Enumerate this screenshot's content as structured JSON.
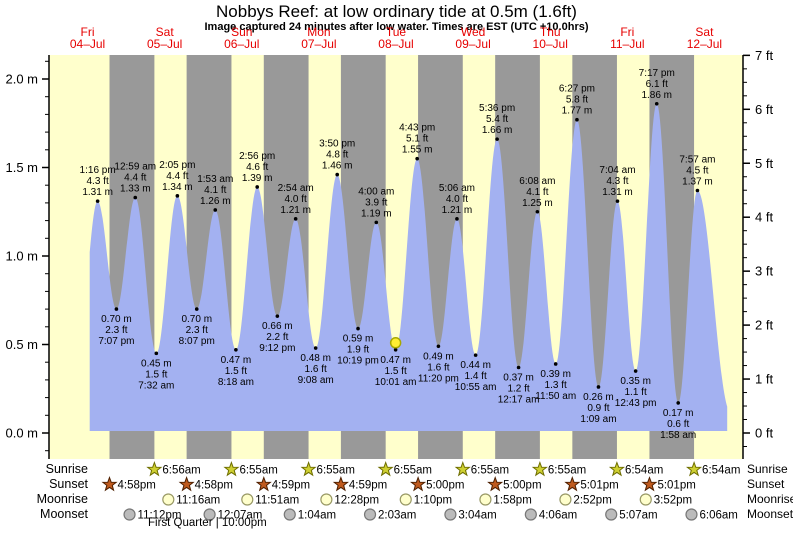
{
  "title": "Nobbys Reef: at low  ordinary tide at 0.5m (1.6ft)",
  "subtitle": "Image captured 24 minutes after low water. Times are EST (UTC +10.0hrs)",
  "days": [
    {
      "label": "Fri",
      "date": "04–Jul"
    },
    {
      "label": "Sat",
      "date": "05–Jul"
    },
    {
      "label": "Sun",
      "date": "06–Jul"
    },
    {
      "label": "Mon",
      "date": "07–Jul"
    },
    {
      "label": "Tue",
      "date": "08–Jul"
    },
    {
      "label": "Wed",
      "date": "09–Jul"
    },
    {
      "label": "Thu",
      "date": "10–Jul"
    },
    {
      "label": "Fri",
      "date": "11–Jul"
    },
    {
      "label": "Sat",
      "date": "12–Jul"
    }
  ],
  "chart_data": {
    "type": "area",
    "title": "Nobbys Reef tide heights",
    "ylim_m": [
      0,
      2.13
    ],
    "ylim_ft": [
      0,
      7
    ],
    "y_ticks_m": [
      "0.0 m",
      "0.5 m",
      "1.0 m",
      "1.5 m",
      "2.0 m"
    ],
    "y_ticks_ft": [
      "0 ft",
      "1 ft",
      "2 ft",
      "3 ft",
      "4 ft",
      "5 ft",
      "6 ft",
      "7 ft"
    ],
    "grid": false,
    "tide_events": [
      {
        "day": 0,
        "time": "1:16 pm",
        "height_ft": "4.3 ft",
        "height_m": "1.31 m",
        "type": "high"
      },
      {
        "day": 0,
        "time": "7:07 pm",
        "height_ft": "2.3 ft",
        "height_m": "0.70 m",
        "type": "low"
      },
      {
        "day": 1,
        "time": "12:59 am",
        "height_ft": "4.4 ft",
        "height_m": "1.33 m",
        "type": "high"
      },
      {
        "day": 1,
        "time": "7:32 am",
        "height_ft": "1.5 ft",
        "height_m": "0.45 m",
        "type": "low"
      },
      {
        "day": 1,
        "time": "2:05 pm",
        "height_ft": "4.4 ft",
        "height_m": "1.34 m",
        "type": "high"
      },
      {
        "day": 1,
        "time": "8:07 pm",
        "height_ft": "2.3 ft",
        "height_m": "0.70 m",
        "type": "low"
      },
      {
        "day": 2,
        "time": "1:53 am",
        "height_ft": "4.1 ft",
        "height_m": "1.26 m",
        "type": "high"
      },
      {
        "day": 2,
        "time": "8:18 am",
        "height_ft": "1.5 ft",
        "height_m": "0.47 m",
        "type": "low"
      },
      {
        "day": 2,
        "time": "2:56 pm",
        "height_ft": "4.6 ft",
        "height_m": "1.39 m",
        "type": "high"
      },
      {
        "day": 2,
        "time": "9:12 pm",
        "height_ft": "2.2 ft",
        "height_m": "0.66 m",
        "type": "low"
      },
      {
        "day": 3,
        "time": "2:54 am",
        "height_ft": "4.0 ft",
        "height_m": "1.21 m",
        "type": "high"
      },
      {
        "day": 3,
        "time": "9:08 am",
        "height_ft": "1.6 ft",
        "height_m": "0.48 m",
        "type": "low"
      },
      {
        "day": 3,
        "time": "3:50 pm",
        "height_ft": "4.8 ft",
        "height_m": "1.46 m",
        "type": "high"
      },
      {
        "day": 3,
        "time": "10:19 pm",
        "height_ft": "1.9 ft",
        "height_m": "0.59 m",
        "type": "low"
      },
      {
        "day": 4,
        "time": "4:00 am",
        "height_ft": "3.9 ft",
        "height_m": "1.19 m",
        "type": "high"
      },
      {
        "day": 4,
        "time": "10:01 am",
        "height_ft": "1.5 ft",
        "height_m": "0.47 m",
        "type": "low"
      },
      {
        "day": 4,
        "time": "4:43 pm",
        "height_ft": "5.1 ft",
        "height_m": "1.55 m",
        "type": "high"
      },
      {
        "day": 4,
        "time": "11:20 pm",
        "height_ft": "1.6 ft",
        "height_m": "0.49 m",
        "type": "low"
      },
      {
        "day": 5,
        "time": "5:06 am",
        "height_ft": "4.0 ft",
        "height_m": "1.21 m",
        "type": "high"
      },
      {
        "day": 5,
        "time": "10:55 am",
        "height_ft": "1.4 ft",
        "height_m": "0.44 m",
        "type": "low"
      },
      {
        "day": 5,
        "time": "5:36 pm",
        "height_ft": "5.4 ft",
        "height_m": "1.66 m",
        "type": "high"
      },
      {
        "day": 6,
        "time": "12:17 am",
        "height_ft": "1.2 ft",
        "height_m": "0.37 m",
        "type": "low"
      },
      {
        "day": 6,
        "time": "6:08 am",
        "height_ft": "4.1 ft",
        "height_m": "1.25 m",
        "type": "high"
      },
      {
        "day": 6,
        "time": "11:50 am",
        "height_ft": "1.3 ft",
        "height_m": "0.39 m",
        "type": "low"
      },
      {
        "day": 6,
        "time": "6:27 pm",
        "height_ft": "5.8 ft",
        "height_m": "1.77 m",
        "type": "high"
      },
      {
        "day": 7,
        "time": "1:09 am",
        "height_ft": "0.9 ft",
        "height_m": "0.26 m",
        "type": "low"
      },
      {
        "day": 7,
        "time": "7:04 am",
        "height_ft": "4.3 ft",
        "height_m": "1.31 m",
        "type": "high"
      },
      {
        "day": 7,
        "time": "12:43 pm",
        "height_ft": "1.1 ft",
        "height_m": "0.35 m",
        "type": "low"
      },
      {
        "day": 7,
        "time": "7:17 pm",
        "height_ft": "6.1 ft",
        "height_m": "1.86 m",
        "type": "high"
      },
      {
        "day": 8,
        "time": "1:58 am",
        "height_ft": "0.6 ft",
        "height_m": "0.17 m",
        "type": "low"
      },
      {
        "day": 8,
        "time": "7:57 am",
        "height_ft": "4.5 ft",
        "height_m": "1.37 m",
        "type": "high"
      }
    ],
    "current_marker": {
      "event_index": 15
    }
  },
  "astro": {
    "rows": [
      {
        "label": "Sunrise",
        "icon": "sunrise-star-icon",
        "events": [
          {
            "day": 1,
            "time": "6:56am"
          },
          {
            "day": 2,
            "time": "6:55am"
          },
          {
            "day": 3,
            "time": "6:55am"
          },
          {
            "day": 4,
            "time": "6:55am"
          },
          {
            "day": 5,
            "time": "6:55am"
          },
          {
            "day": 6,
            "time": "6:55am"
          },
          {
            "day": 7,
            "time": "6:54am"
          },
          {
            "day": 8,
            "time": "6:54am"
          }
        ]
      },
      {
        "label": "Sunset",
        "icon": "sunset-star-icon",
        "events": [
          {
            "day": 0,
            "time": "4:58pm"
          },
          {
            "day": 1,
            "time": "4:58pm"
          },
          {
            "day": 2,
            "time": "4:59pm"
          },
          {
            "day": 3,
            "time": "4:59pm"
          },
          {
            "day": 4,
            "time": "5:00pm"
          },
          {
            "day": 5,
            "time": "5:00pm"
          },
          {
            "day": 6,
            "time": "5:01pm"
          },
          {
            "day": 7,
            "time": "5:01pm"
          }
        ]
      },
      {
        "label": "Moonrise",
        "icon": "moonrise-icon",
        "events": [
          {
            "day": 1,
            "time": "11:16am"
          },
          {
            "day": 2,
            "time": "11:51am"
          },
          {
            "day": 3,
            "time": "12:28pm"
          },
          {
            "day": 4,
            "time": "1:10pm"
          },
          {
            "day": 5,
            "time": "1:58pm"
          },
          {
            "day": 6,
            "time": "2:52pm"
          },
          {
            "day": 7,
            "time": "3:52pm"
          }
        ]
      },
      {
        "label": "Moonset",
        "icon": "moonset-icon",
        "events": [
          {
            "day": 0,
            "time": "11:12pm"
          },
          {
            "day": 2,
            "time": "12:07am"
          },
          {
            "day": 3,
            "time": "1:04am"
          },
          {
            "day": 4,
            "time": "2:03am"
          },
          {
            "day": 5,
            "time": "3:04am"
          },
          {
            "day": 6,
            "time": "4:06am"
          },
          {
            "day": 7,
            "time": "5:07am"
          },
          {
            "day": 8,
            "time": "6:06am"
          }
        ]
      }
    ],
    "moon_phase_text": "First Quarter | 10:00pm"
  },
  "colors": {
    "day_band": "#ffffcc",
    "night_band": "#999999",
    "tide_fill": "#a3b1f1",
    "header_red": "#e60000",
    "axis": "#000000",
    "current_marker_fill": "#ffee33",
    "current_marker_stroke": "#a8a800",
    "sunrise_star_fill": "#cfd032",
    "sunrise_star_stroke": "#6e6e00",
    "sunset_star_fill": "#bf5a1e",
    "sunset_star_stroke": "#4d1f00",
    "moonrise_fill": "#ffffcc",
    "moonrise_stroke": "#999966",
    "moonset_fill": "#bbbbbb",
    "moonset_stroke": "#777777"
  }
}
